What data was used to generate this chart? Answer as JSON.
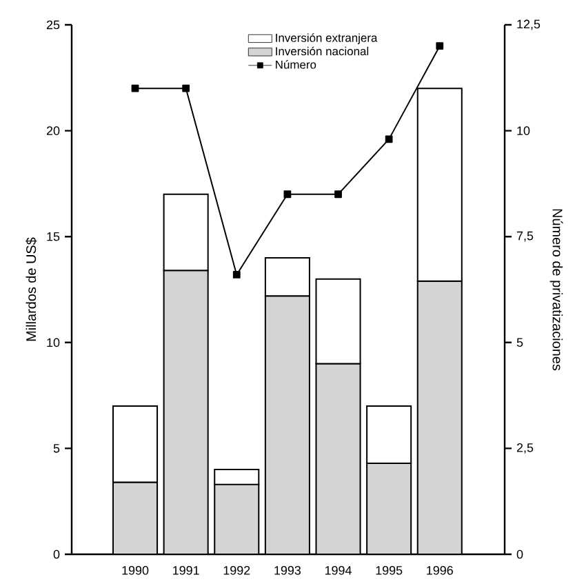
{
  "chart_data": {
    "type": "bar",
    "stacked": true,
    "categories": [
      "1990",
      "1991",
      "1992",
      "1993",
      "1994",
      "1995",
      "1996"
    ],
    "series": [
      {
        "name": "Inversión nacional",
        "color": "#d4d4d4",
        "values": [
          3.4,
          13.4,
          3.3,
          12.2,
          9,
          4.3,
          12.9
        ]
      },
      {
        "name": "Inversión extranjera",
        "color": "#ffffff",
        "values": [
          3.6,
          3.6,
          0.7,
          1.8,
          4,
          2.7,
          9.1
        ]
      },
      {
        "name": "Número",
        "type": "line",
        "axis": "y2",
        "color": "#000000",
        "values": [
          11,
          11,
          6.6,
          8.5,
          8.5,
          9.8,
          12
        ]
      }
    ],
    "ylabel": "Millardos de US$",
    "y2label": "Número de privatizaciones",
    "ylim": [
      0,
      25
    ],
    "yticks": [
      0,
      5,
      10,
      15,
      20,
      25
    ],
    "y2lim": [
      0,
      12.5
    ],
    "y2ticks": [
      0,
      {
        "value": 2.5,
        "label": "2,5"
      },
      5,
      {
        "value": 7.5,
        "label": "7,5"
      },
      10,
      {
        "value": 12.5,
        "label": "12,5"
      }
    ],
    "marker": "square",
    "legend": "top"
  }
}
